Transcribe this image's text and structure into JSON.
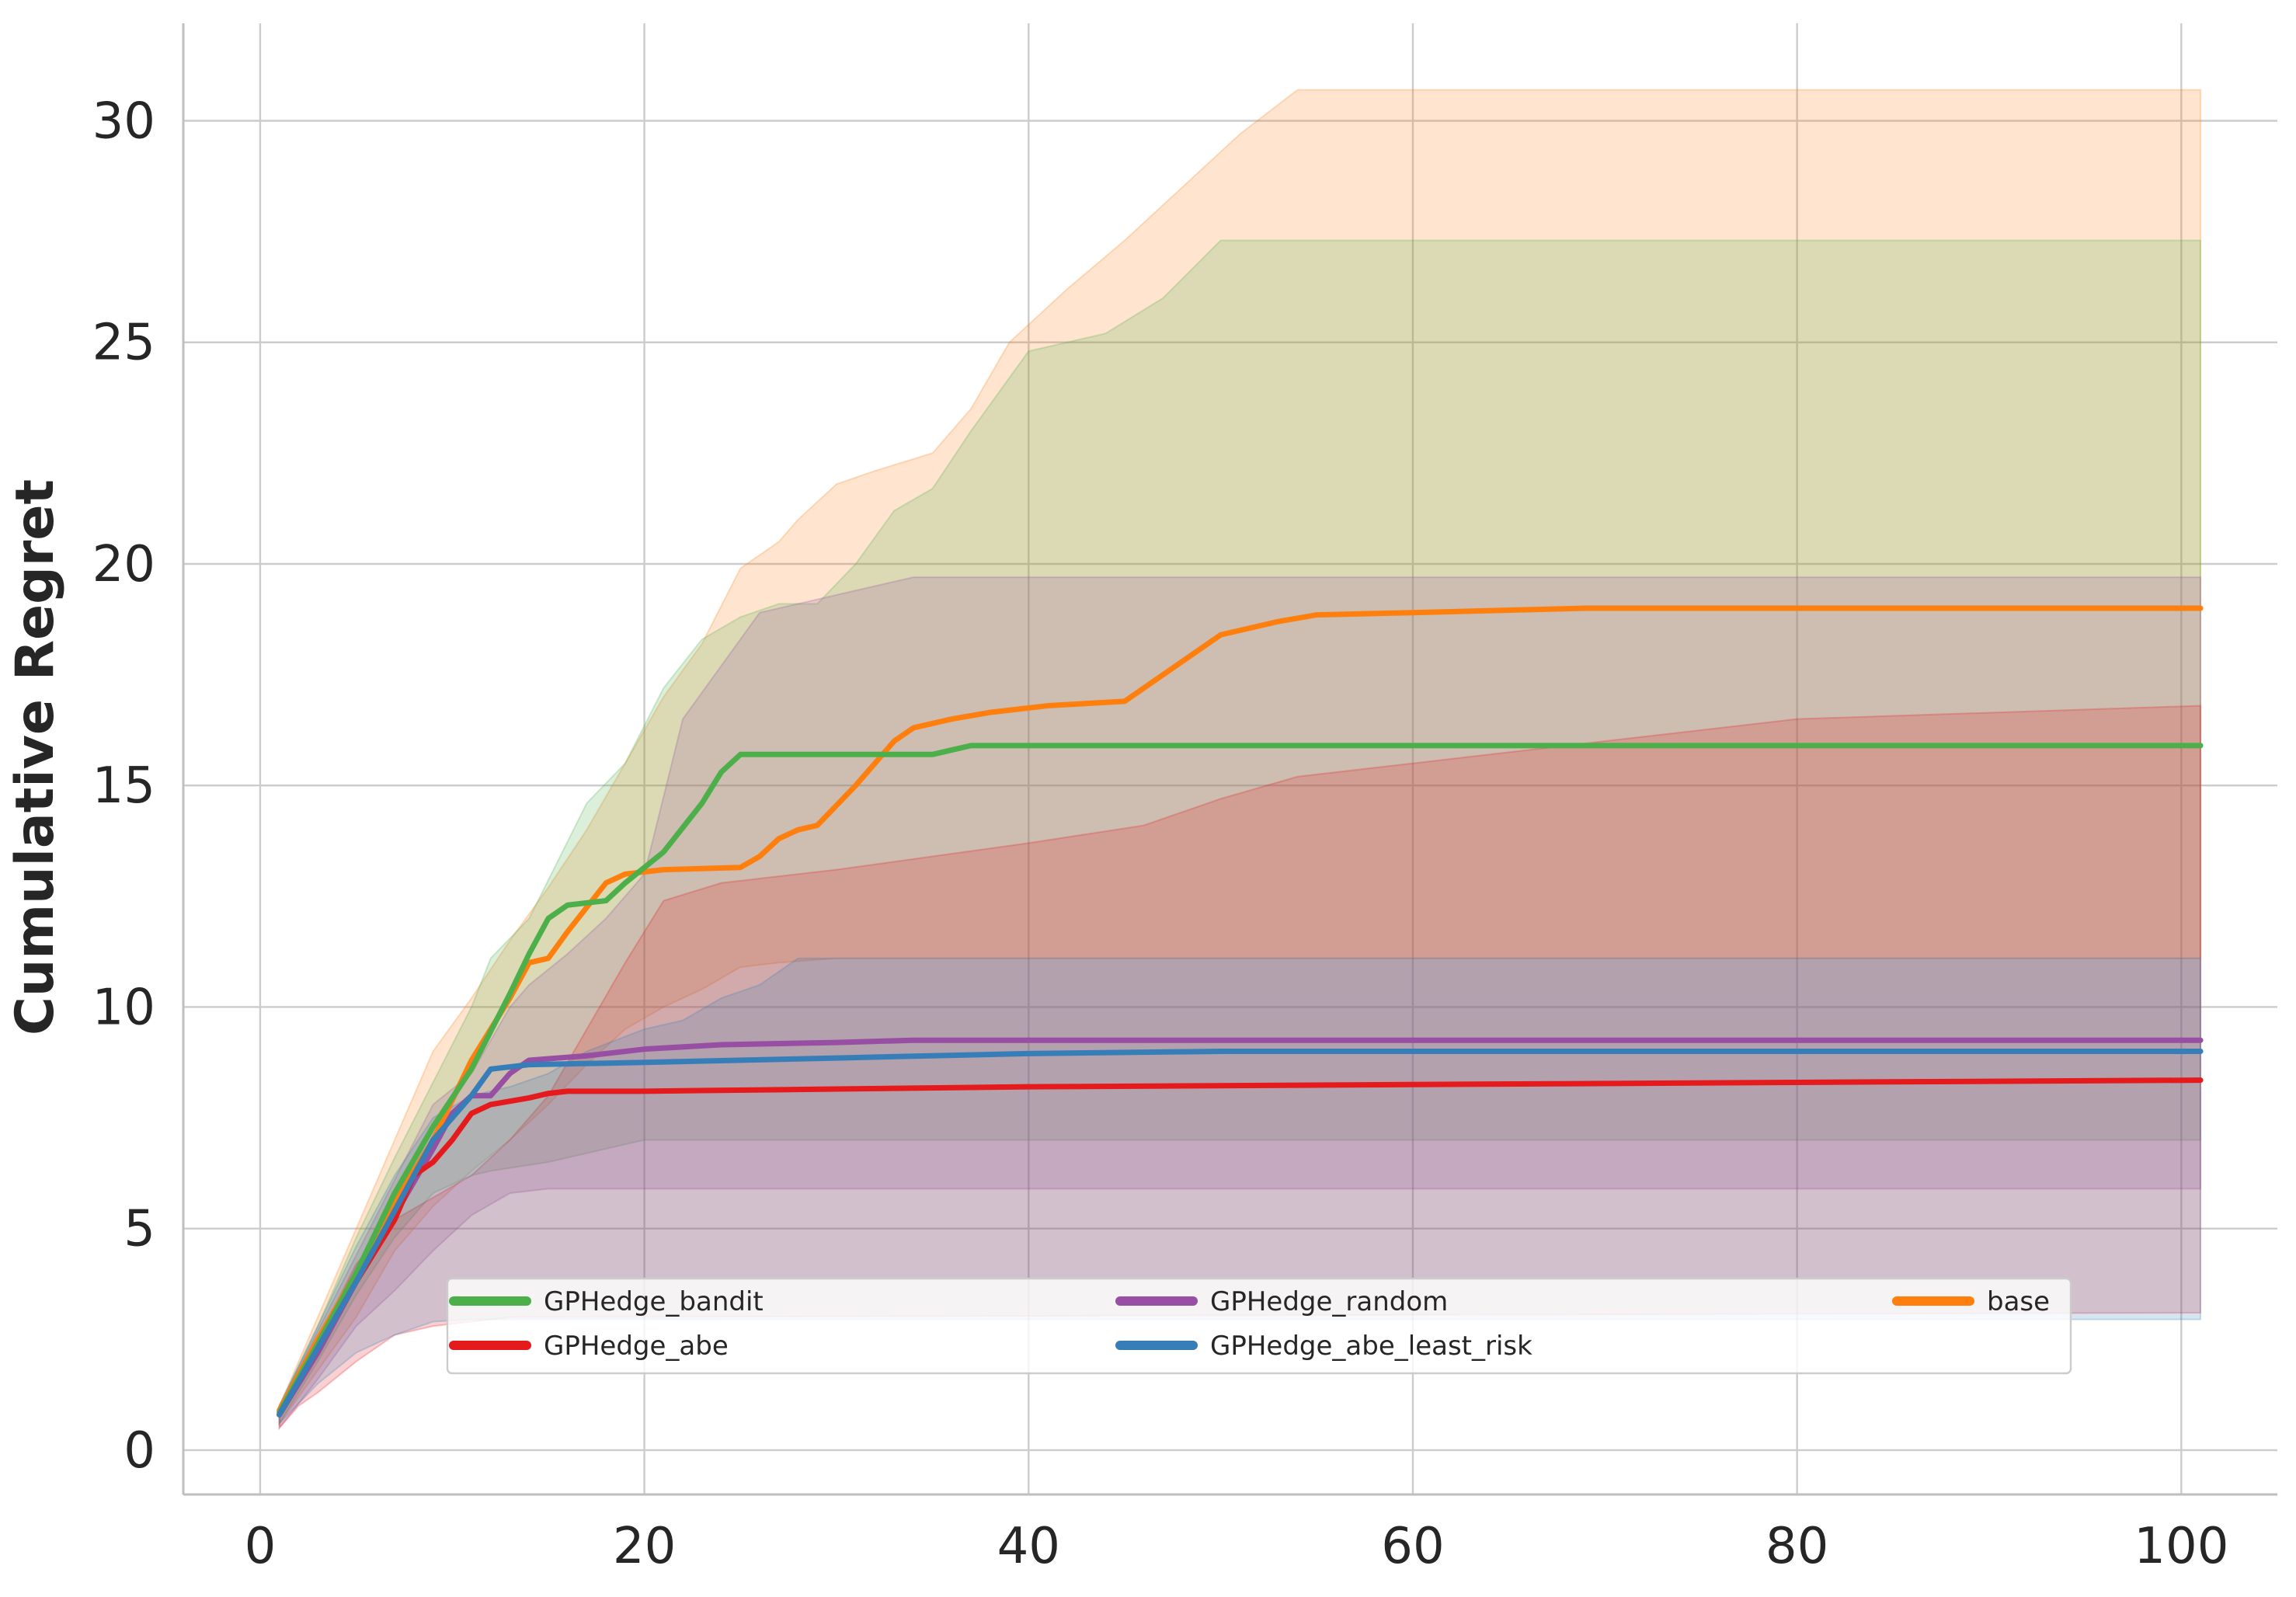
{
  "chart_data": {
    "type": "line",
    "title": "",
    "xlabel": "",
    "ylabel": "Cumulative Regret",
    "xlim": [
      -4,
      105
    ],
    "ylim": [
      -1,
      32.2
    ],
    "xticks": [
      0,
      20,
      40,
      60,
      80,
      100
    ],
    "yticks": [
      0,
      5,
      10,
      15,
      20,
      25,
      30
    ],
    "grid": true,
    "legend_position": "lower-center",
    "series": [
      {
        "name": "base",
        "color": "#ff7f0e",
        "line": [
          [
            1,
            0.9
          ],
          [
            3,
            2.5
          ],
          [
            5,
            4.0
          ],
          [
            7,
            5.6
          ],
          [
            9,
            7.0
          ],
          [
            11,
            8.8
          ],
          [
            13,
            10.2
          ],
          [
            14,
            11.0
          ],
          [
            15,
            11.1
          ],
          [
            16,
            11.7
          ],
          [
            18,
            12.8
          ],
          [
            19,
            13.0
          ],
          [
            21,
            13.1
          ],
          [
            25,
            13.15
          ],
          [
            26,
            13.4
          ],
          [
            27,
            13.8
          ],
          [
            28,
            14.0
          ],
          [
            29,
            14.1
          ],
          [
            31,
            15.0
          ],
          [
            33,
            16.0
          ],
          [
            34,
            16.3
          ],
          [
            36,
            16.5
          ],
          [
            38,
            16.65
          ],
          [
            41,
            16.8
          ],
          [
            45,
            16.9
          ],
          [
            47,
            17.5
          ],
          [
            49,
            18.1
          ],
          [
            50,
            18.4
          ],
          [
            53,
            18.7
          ],
          [
            55,
            18.85
          ],
          [
            60,
            18.9
          ],
          [
            69,
            19.0
          ],
          [
            80,
            19.0
          ],
          [
            101,
            19.0
          ]
        ],
        "band_upper": [
          [
            1,
            1.0
          ],
          [
            3,
            3.0
          ],
          [
            5,
            5.0
          ],
          [
            7,
            7.0
          ],
          [
            9,
            9.0
          ],
          [
            11,
            10.2
          ],
          [
            13,
            11.5
          ],
          [
            15,
            12.7
          ],
          [
            17,
            14.0
          ],
          [
            19,
            15.5
          ],
          [
            21,
            17.0
          ],
          [
            23,
            18.2
          ],
          [
            25,
            19.9
          ],
          [
            27,
            20.5
          ],
          [
            28,
            21.0
          ],
          [
            30,
            21.8
          ],
          [
            32,
            22.1
          ],
          [
            35,
            22.5
          ],
          [
            37,
            23.5
          ],
          [
            39,
            25.0
          ],
          [
            42,
            26.2
          ],
          [
            45,
            27.3
          ],
          [
            48,
            28.5
          ],
          [
            51,
            29.7
          ],
          [
            54,
            30.7
          ],
          [
            101,
            30.7
          ]
        ],
        "band_lower": [
          [
            1,
            0.6
          ],
          [
            3,
            1.8
          ],
          [
            5,
            3.0
          ],
          [
            7,
            4.5
          ],
          [
            9,
            5.5
          ],
          [
            11,
            6.3
          ],
          [
            13,
            7.0
          ],
          [
            15,
            7.8
          ],
          [
            17,
            8.7
          ],
          [
            19,
            9.5
          ],
          [
            21,
            10.0
          ],
          [
            23,
            10.4
          ],
          [
            25,
            10.9
          ],
          [
            27,
            11.0
          ],
          [
            30,
            11.1
          ],
          [
            35,
            11.1
          ],
          [
            101,
            11.1
          ]
        ]
      },
      {
        "name": "GPHedge_bandit",
        "color": "#4daf4a",
        "line": [
          [
            1,
            0.85
          ],
          [
            3,
            2.4
          ],
          [
            5,
            4.0
          ],
          [
            7,
            5.8
          ],
          [
            9,
            7.3
          ],
          [
            11,
            8.6
          ],
          [
            13,
            10.3
          ],
          [
            14,
            11.2
          ],
          [
            15,
            12.0
          ],
          [
            16,
            12.3
          ],
          [
            18,
            12.4
          ],
          [
            19,
            12.8
          ],
          [
            21,
            13.5
          ],
          [
            23,
            14.6
          ],
          [
            24,
            15.3
          ],
          [
            25,
            15.7
          ],
          [
            27,
            15.7
          ],
          [
            33,
            15.7
          ],
          [
            35,
            15.7
          ],
          [
            36,
            15.8
          ],
          [
            37,
            15.9
          ],
          [
            101,
            15.9
          ]
        ],
        "band_upper": [
          [
            1,
            1.0
          ],
          [
            3,
            2.8
          ],
          [
            5,
            4.8
          ],
          [
            7,
            6.6
          ],
          [
            9,
            8.3
          ],
          [
            11,
            10.0
          ],
          [
            12,
            11.1
          ],
          [
            14,
            12.0
          ],
          [
            17,
            14.6
          ],
          [
            19,
            15.5
          ],
          [
            21,
            17.2
          ],
          [
            23,
            18.3
          ],
          [
            25,
            18.8
          ],
          [
            27,
            19.1
          ],
          [
            29,
            19.1
          ],
          [
            31,
            20.0
          ],
          [
            33,
            21.2
          ],
          [
            35,
            21.7
          ],
          [
            37,
            23.0
          ],
          [
            39,
            24.2
          ],
          [
            40,
            24.8
          ],
          [
            44,
            25.2
          ],
          [
            47,
            26.0
          ],
          [
            50,
            27.3
          ],
          [
            101,
            27.3
          ]
        ],
        "band_lower": [
          [
            1,
            0.6
          ],
          [
            3,
            2.0
          ],
          [
            5,
            3.5
          ],
          [
            7,
            4.8
          ],
          [
            9,
            5.8
          ],
          [
            11,
            6.2
          ],
          [
            12,
            6.3
          ],
          [
            15,
            6.5
          ],
          [
            18,
            6.8
          ],
          [
            20,
            7.0
          ],
          [
            22,
            7.0
          ],
          [
            101,
            7.0
          ]
        ]
      },
      {
        "name": "GPHedge_random",
        "color": "#984ea3",
        "line": [
          [
            1,
            0.8
          ],
          [
            3,
            2.2
          ],
          [
            5,
            3.8
          ],
          [
            7,
            5.3
          ],
          [
            9,
            6.8
          ],
          [
            10,
            7.6
          ],
          [
            11,
            8.0
          ],
          [
            12,
            8.0
          ],
          [
            13,
            8.5
          ],
          [
            14,
            8.8
          ],
          [
            17,
            8.9
          ],
          [
            20,
            9.05
          ],
          [
            24,
            9.15
          ],
          [
            30,
            9.2
          ],
          [
            34,
            9.25
          ],
          [
            101,
            9.25
          ]
        ],
        "band_upper": [
          [
            1,
            1.0
          ],
          [
            3,
            2.7
          ],
          [
            5,
            4.4
          ],
          [
            7,
            6.1
          ],
          [
            9,
            7.8
          ],
          [
            11,
            8.5
          ],
          [
            13,
            10.0
          ],
          [
            14,
            10.5
          ],
          [
            16,
            11.2
          ],
          [
            18,
            12.0
          ],
          [
            20,
            13.0
          ],
          [
            22,
            16.5
          ],
          [
            24,
            17.7
          ],
          [
            26,
            18.9
          ],
          [
            30,
            19.3
          ],
          [
            34,
            19.7
          ],
          [
            101,
            19.7
          ]
        ],
        "band_lower": [
          [
            1,
            0.5
          ],
          [
            3,
            1.6
          ],
          [
            5,
            2.8
          ],
          [
            7,
            3.6
          ],
          [
            9,
            4.5
          ],
          [
            11,
            5.3
          ],
          [
            13,
            5.8
          ],
          [
            15,
            5.9
          ],
          [
            101,
            5.9
          ]
        ]
      },
      {
        "name": "GPHedge_abe",
        "color": "#e41a1c",
        "line": [
          [
            1,
            0.8
          ],
          [
            3,
            2.3
          ],
          [
            5,
            3.8
          ],
          [
            7,
            5.2
          ],
          [
            8,
            6.2
          ],
          [
            9,
            6.5
          ],
          [
            10,
            7.0
          ],
          [
            11,
            7.6
          ],
          [
            12,
            7.8
          ],
          [
            14,
            7.95
          ],
          [
            15,
            8.05
          ],
          [
            16,
            8.1
          ],
          [
            20,
            8.1
          ],
          [
            30,
            8.15
          ],
          [
            40,
            8.2
          ],
          [
            60,
            8.25
          ],
          [
            80,
            8.3
          ],
          [
            101,
            8.35
          ]
        ],
        "band_upper": [
          [
            1,
            1.0
          ],
          [
            3,
            2.5
          ],
          [
            5,
            4.2
          ],
          [
            7,
            5.2
          ],
          [
            9,
            5.7
          ],
          [
            11,
            6.2
          ],
          [
            13,
            7.0
          ],
          [
            15,
            8.0
          ],
          [
            17,
            9.5
          ],
          [
            19,
            11.0
          ],
          [
            21,
            12.4
          ],
          [
            24,
            12.8
          ],
          [
            30,
            13.1
          ],
          [
            40,
            13.7
          ],
          [
            46,
            14.1
          ],
          [
            50,
            14.7
          ],
          [
            54,
            15.2
          ],
          [
            60,
            15.5
          ],
          [
            70,
            16.0
          ],
          [
            80,
            16.5
          ],
          [
            101,
            16.8
          ]
        ],
        "band_lower": [
          [
            1,
            0.5
          ],
          [
            2,
            1.0
          ],
          [
            3,
            1.3
          ],
          [
            5,
            2.0
          ],
          [
            7,
            2.6
          ],
          [
            9,
            2.8
          ],
          [
            11,
            2.9
          ],
          [
            13,
            3.0
          ],
          [
            101,
            3.1
          ]
        ]
      },
      {
        "name": "GPHedge_abe_least_risk",
        "color": "#377eb8",
        "line": [
          [
            1,
            0.8
          ],
          [
            3,
            2.3
          ],
          [
            5,
            3.8
          ],
          [
            7,
            5.4
          ],
          [
            9,
            7.0
          ],
          [
            11,
            8.0
          ],
          [
            12,
            8.6
          ],
          [
            14,
            8.7
          ],
          [
            20,
            8.75
          ],
          [
            30,
            8.85
          ],
          [
            40,
            8.95
          ],
          [
            50,
            9.0
          ],
          [
            101,
            9.0
          ]
        ],
        "band_upper": [
          [
            1,
            1.0
          ],
          [
            3,
            2.8
          ],
          [
            5,
            4.6
          ],
          [
            7,
            6.2
          ],
          [
            9,
            7.5
          ],
          [
            11,
            8.0
          ],
          [
            13,
            8.2
          ],
          [
            15,
            8.5
          ],
          [
            17,
            9.0
          ],
          [
            20,
            9.5
          ],
          [
            22,
            9.7
          ],
          [
            24,
            10.2
          ],
          [
            26,
            10.5
          ],
          [
            28,
            11.1
          ],
          [
            35,
            11.1
          ],
          [
            101,
            11.1
          ]
        ],
        "band_lower": [
          [
            1,
            0.6
          ],
          [
            3,
            1.5
          ],
          [
            5,
            2.2
          ],
          [
            7,
            2.6
          ],
          [
            9,
            2.9
          ],
          [
            11,
            2.95
          ],
          [
            101,
            2.95
          ]
        ]
      }
    ],
    "legend_order": [
      "GPHedge_bandit",
      "GPHedge_abe",
      "GPHedge_random",
      "GPHedge_abe_least_risk",
      "base"
    ]
  }
}
